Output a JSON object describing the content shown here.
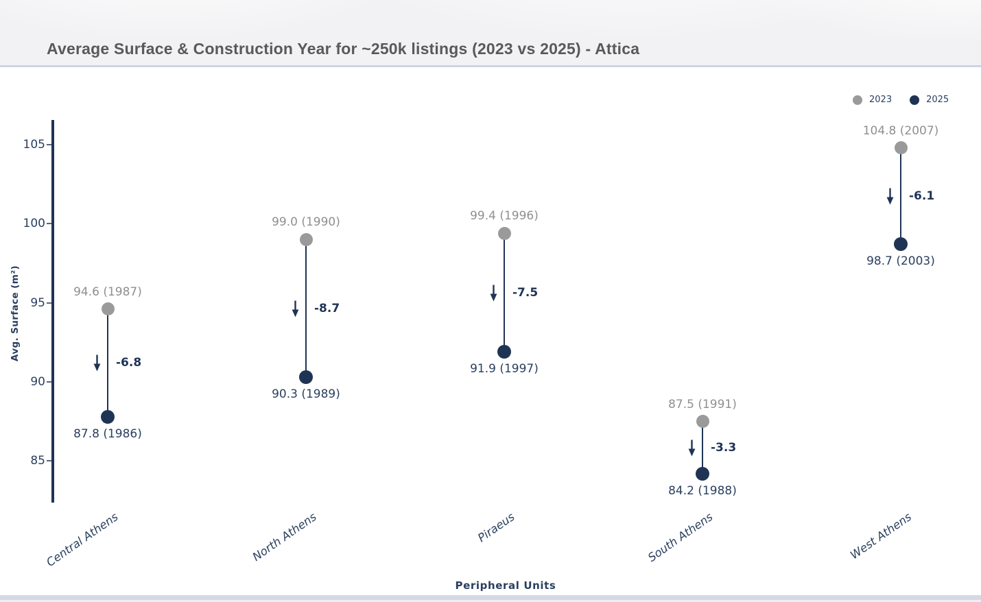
{
  "header": {
    "title": "Average Surface & Construction Year for ~250k listings (2023 vs 2025) - Attica"
  },
  "legend": {
    "items": [
      {
        "label": "2023",
        "color": "#9a9a9a"
      },
      {
        "label": "2025",
        "color": "#1f3454"
      }
    ]
  },
  "colors": {
    "navy": "#1f3454",
    "text_navy": "#2a3f5f",
    "gray": "#9a9a9a",
    "gray_text": "#8f8f8f"
  },
  "chart_data": {
    "type": "dumbbell",
    "title": "Average Surface & Construction Year for ~250k listings (2023 vs 2025) - Attica",
    "xlabel": "Peripheral Units",
    "ylabel": "Avg. Surface (m²)",
    "ylim": [
      83.5,
      106.6
    ],
    "yticks": [
      105,
      100,
      95,
      90,
      85
    ],
    "grid": false,
    "legend_position": "top-right",
    "categories": [
      "Central Athens",
      "North Athens",
      "Piraeus",
      "South Athens",
      "West Athens"
    ],
    "series": [
      {
        "name": "2023",
        "color": "#9a9a9a",
        "values": [
          94.6,
          99.0,
          99.4,
          87.5,
          104.8
        ],
        "years": [
          1987,
          1990,
          1996,
          1991,
          2007
        ],
        "labels": [
          "94.6 (1987)",
          "99.0 (1990)",
          "99.4 (1996)",
          "87.5 (1991)",
          "104.8 (2007)"
        ]
      },
      {
        "name": "2025",
        "color": "#1f3454",
        "values": [
          87.8,
          90.3,
          91.9,
          84.2,
          98.7
        ],
        "years": [
          1986,
          1989,
          1997,
          1988,
          2003
        ],
        "labels": [
          "87.8 (1986)",
          "90.3 (1989)",
          "91.9 (1997)",
          "84.2 (1988)",
          "98.7 (2003)"
        ]
      }
    ],
    "deltas": [
      "-6.8",
      "-8.7",
      "-7.5",
      "-3.3",
      "-6.1"
    ]
  }
}
